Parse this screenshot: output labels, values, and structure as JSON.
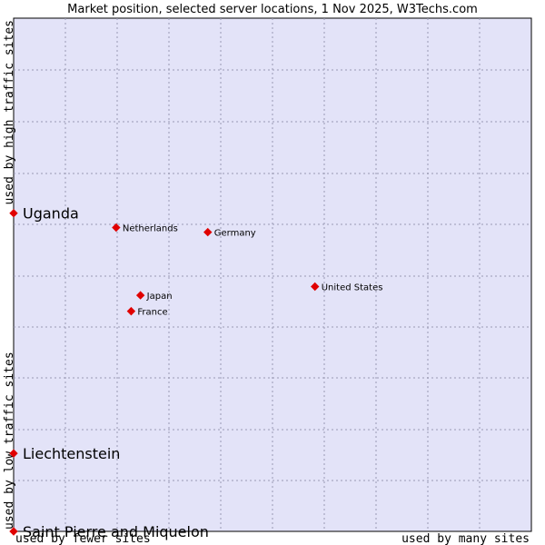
{
  "colors": {
    "plot_background": "#e3e3f8",
    "grid": "#9999b3",
    "marker": "#e00000"
  },
  "chart_data": {
    "type": "scatter",
    "title": "Market position, selected server locations, 1 Nov 2025, W3Techs.com",
    "xlabel_left": "used by fewer sites",
    "xlabel_right": "used by many sites",
    "ylabel_bottom": "used by low traffic sites",
    "ylabel_top": "used by high traffic sites",
    "xlim": [
      0,
      100
    ],
    "ylim": [
      0,
      100
    ],
    "grid": true,
    "points": [
      {
        "label": "Netherlands",
        "x": 19.8,
        "y": 59.2,
        "size": "small"
      },
      {
        "label": "Germany",
        "x": 37.5,
        "y": 58.3,
        "size": "small"
      },
      {
        "label": "United States",
        "x": 58.2,
        "y": 47.7,
        "size": "small"
      },
      {
        "label": "Japan",
        "x": 24.5,
        "y": 46.0,
        "size": "small"
      },
      {
        "label": "France",
        "x": 22.7,
        "y": 42.9,
        "size": "small"
      },
      {
        "label": "Uganda",
        "x": 0,
        "y": 62.0,
        "size": "large"
      },
      {
        "label": "Liechtenstein",
        "x": 0,
        "y": 15.2,
        "size": "large"
      },
      {
        "label": "Saint Pierre and Miquelon",
        "x": 0,
        "y": 0,
        "size": "large"
      }
    ]
  }
}
